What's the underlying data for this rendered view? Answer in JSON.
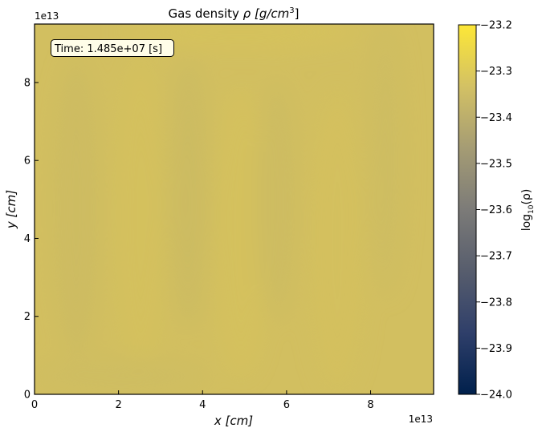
{
  "chart_data": {
    "type": "heatmap",
    "title": "Gas density ρ [g/cm³]",
    "title_parts": {
      "prefix": "Gas density ",
      "rho": "ρ",
      "unit_open": " [g/cm",
      "exp": "3",
      "unit_close": "]"
    },
    "xlabel": {
      "var": "x",
      "unit": " [cm]"
    },
    "ylabel": {
      "var": "y",
      "unit": " [cm]"
    },
    "x_ticks": [
      "0",
      "2",
      "4",
      "6",
      "8"
    ],
    "x_tick_values": [
      0,
      2,
      4,
      6,
      8
    ],
    "y_ticks": [
      "0",
      "2",
      "4",
      "6",
      "8"
    ],
    "y_tick_values": [
      0,
      2,
      4,
      6,
      8
    ],
    "x_offset_label": "1e13",
    "y_offset_label": "1e13",
    "xlim": [
      0,
      9.5
    ],
    "ylim": [
      0,
      9.5
    ],
    "annotation": "Time: 1.485e+07 [s]",
    "colorbar": {
      "label": {
        "prefix": "log",
        "sub": "10",
        "suffix": "(ρ)"
      },
      "ticks": [
        "−23.2",
        "−23.3",
        "−23.4",
        "−23.5",
        "−23.6",
        "−23.7",
        "−23.8",
        "−23.9",
        "−24.0"
      ],
      "tick_values": [
        -23.2,
        -23.3,
        -23.4,
        -23.5,
        -23.6,
        -23.7,
        -23.8,
        -23.9,
        -24.0
      ],
      "range": [
        -24.0,
        -23.2
      ],
      "colormap": "cividis",
      "stops": [
        "#00204c",
        "#2f3f6a",
        "#575d6d",
        "#7c7b78",
        "#a59c74",
        "#d3c164",
        "#fde737"
      ]
    },
    "field_value_approx": -23.33,
    "field_color": "#d2bf60"
  }
}
